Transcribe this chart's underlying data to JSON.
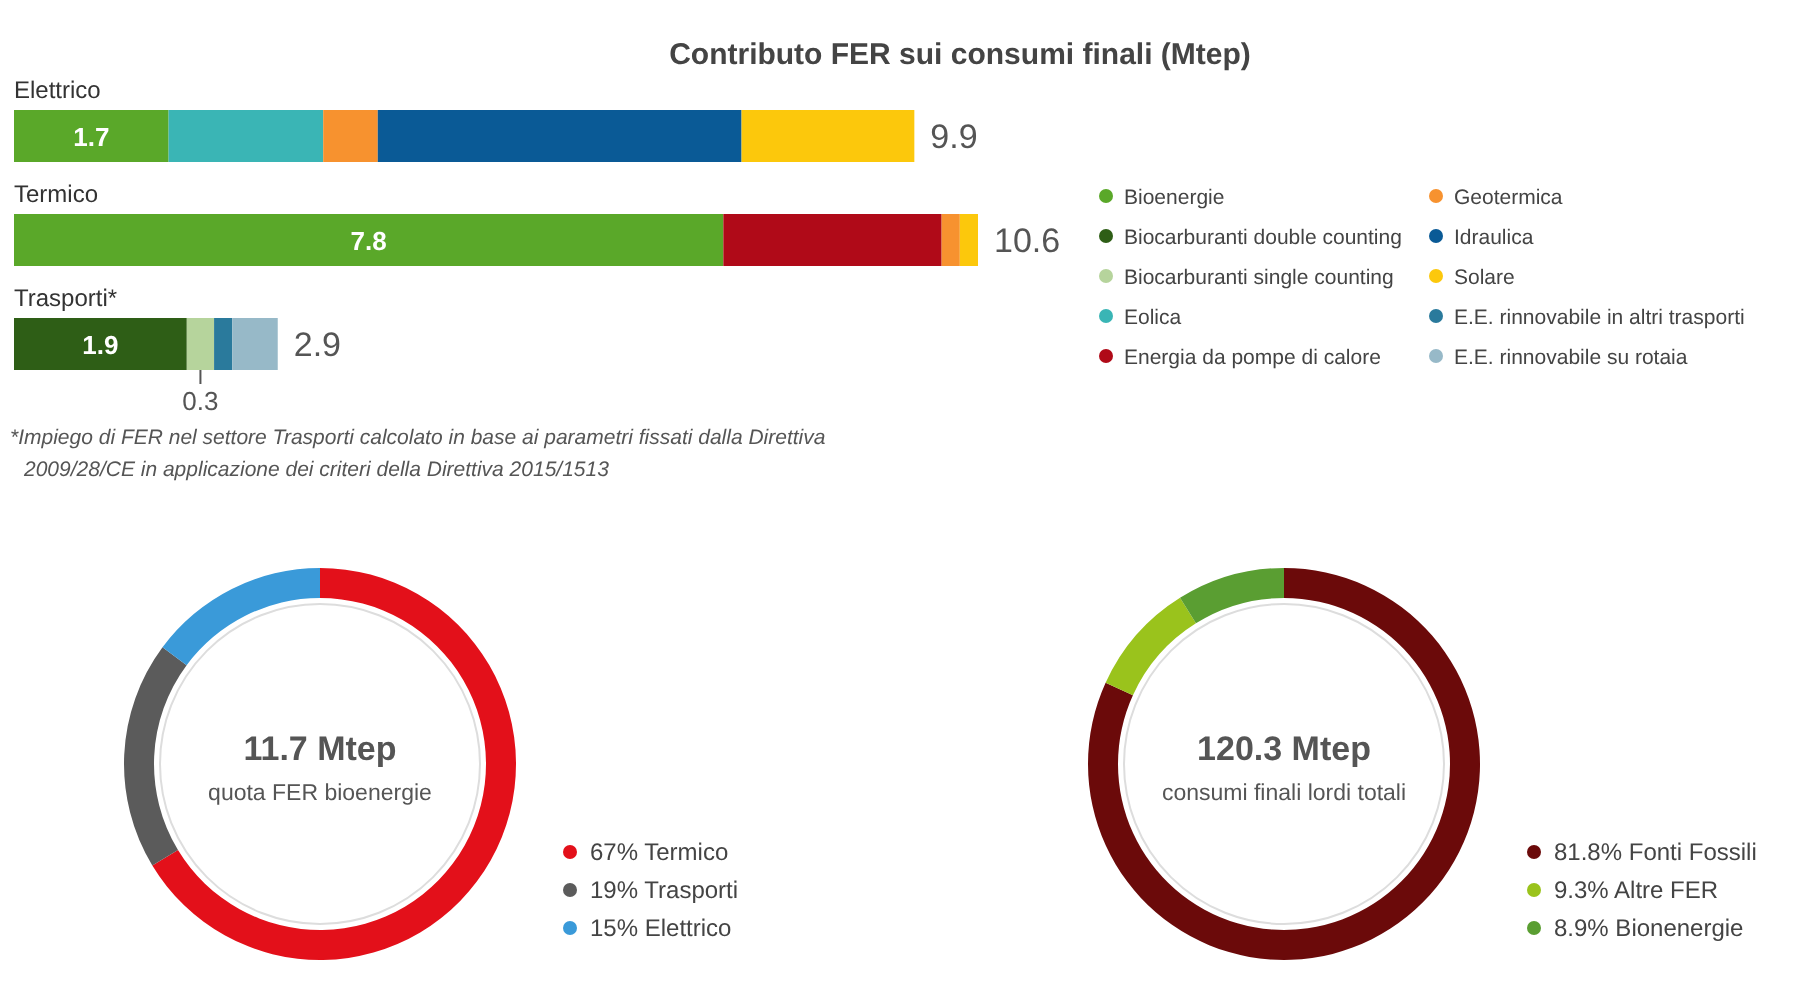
{
  "chart_data": [
    {
      "type": "bar",
      "orientation": "horizontal",
      "stacked": true,
      "title": "Contributo FER sui consumi finali (Mtep)",
      "categories": [
        "Elettrico",
        "Termico",
        "Trasporti*"
      ],
      "legend": "right",
      "series": [
        {
          "name": "Bioenergie",
          "color": "#5aa829",
          "values": [
            1.7,
            7.8,
            null
          ],
          "value_labels": [
            "1.7",
            "7.8",
            null
          ]
        },
        {
          "name": "Biocarburanti double counting",
          "color": "#2e5e16",
          "values": [
            null,
            null,
            1.9
          ],
          "value_labels": [
            null,
            null,
            "1.9"
          ]
        },
        {
          "name": "Biocarburanti single counting",
          "color": "#b6d49c",
          "values": [
            null,
            null,
            0.3
          ],
          "value_labels": [
            null,
            null,
            "0.3"
          ]
        },
        {
          "name": "Eolica",
          "color": "#3ab5b5",
          "values": [
            1.7,
            null,
            null
          ]
        },
        {
          "name": "Energia da pompe di calore",
          "color": "#b00a18",
          "values": [
            null,
            2.4,
            null
          ]
        },
        {
          "name": "Geotermica",
          "color": "#f7922f",
          "values": [
            0.6,
            0.2,
            null
          ]
        },
        {
          "name": "Idraulica",
          "color": "#0a5a96",
          "values": [
            4.0,
            null,
            null
          ]
        },
        {
          "name": "Solare",
          "color": "#fcc80c",
          "values": [
            1.9,
            0.2,
            null
          ]
        },
        {
          "name": "E.E. rinnovabile in altri trasporti",
          "color": "#2a7a9c",
          "values": [
            null,
            null,
            0.2
          ]
        },
        {
          "name": "E.E. rinnovabile su rotaia",
          "color": "#97b9c8",
          "values": [
            null,
            null,
            0.5
          ]
        }
      ],
      "totals": [
        "9.9",
        "10.6",
        "2.9"
      ],
      "annotations": [
        "*Impiego di FER nel settore Trasporti calcolato in base ai parametri fissati dalla Direttiva 2009/28/CE in applicazione dei criteri della Direttiva 2015/1513"
      ]
    },
    {
      "type": "donut",
      "title": "11.7 Mtep",
      "subtitle": "quota FER bioenergie",
      "categories": [
        "Termico",
        "Trasporti",
        "Elettrico"
      ],
      "values": [
        67,
        19,
        15
      ],
      "value_labels": [
        "67%",
        "19%",
        "15%"
      ],
      "colors": [
        "#e3101a",
        "#5b5b5b",
        "#3a9ad9"
      ],
      "legend": "bottom right"
    },
    {
      "type": "donut",
      "title": "120.3 Mtep",
      "subtitle": "consumi finali lordi totali",
      "categories": [
        "Fonti Fossili",
        "Altre FER",
        "Bionenergie"
      ],
      "values": [
        81.8,
        9.3,
        8.9
      ],
      "value_labels": [
        "81.8%",
        "9.3%",
        "8.9%"
      ],
      "colors": [
        "#6b0a0a",
        "#9ac31c",
        "#5a9e32"
      ],
      "legend": "bottom right"
    }
  ]
}
